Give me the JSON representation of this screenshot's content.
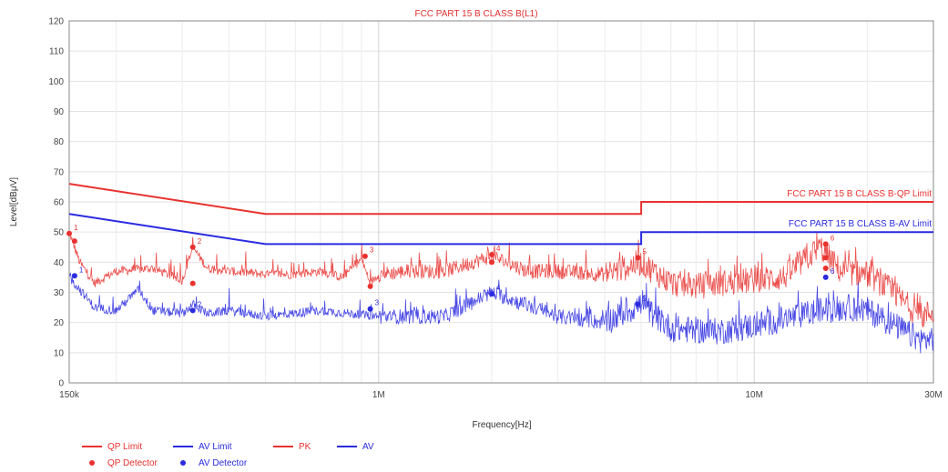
{
  "chart_data": {
    "type": "line",
    "title": "FCC PART 15 B CLASS B(L1)",
    "xlabel": "Frequency[Hz]",
    "ylabel": "Level[dBμV]",
    "x_scale": "log",
    "xlim": [
      150000,
      30000000
    ],
    "ylim": [
      0,
      120
    ],
    "y_ticks": [
      0,
      10,
      20,
      30,
      40,
      50,
      60,
      70,
      80,
      90,
      100,
      110,
      120
    ],
    "x_ticks": [
      {
        "value": 150000,
        "label": "150k"
      },
      {
        "value": 1000000,
        "label": "1M"
      },
      {
        "value": 10000000,
        "label": "10M"
      },
      {
        "value": 30000000,
        "label": "30M"
      }
    ],
    "grid": true,
    "colors": {
      "red": "#e8322f",
      "blue": "#2a2ae0"
    },
    "limits": [
      {
        "name": "QP Limit",
        "label": "FCC PART 15 B CLASS B-QP Limit",
        "color": "#e8322f",
        "points": [
          [
            150000,
            66
          ],
          [
            500000,
            56
          ],
          [
            5000000,
            56
          ],
          [
            5000000,
            60
          ],
          [
            30000000,
            60
          ]
        ]
      },
      {
        "name": "AV Limit",
        "label": "FCC PART 15 B CLASS B-AV Limit",
        "color": "#2a2ae0",
        "points": [
          [
            150000,
            56
          ],
          [
            500000,
            46
          ],
          [
            5000000,
            46
          ],
          [
            5000000,
            50
          ],
          [
            30000000,
            50
          ]
        ]
      }
    ],
    "series": [
      {
        "name": "PK",
        "color": "#e8322f",
        "points": [
          [
            150000,
            50
          ],
          [
            160000,
            40
          ],
          [
            175000,
            33
          ],
          [
            200000,
            37
          ],
          [
            250000,
            38
          ],
          [
            300000,
            34
          ],
          [
            320000,
            45
          ],
          [
            350000,
            38
          ],
          [
            400000,
            37
          ],
          [
            500000,
            36
          ],
          [
            600000,
            36
          ],
          [
            700000,
            37
          ],
          [
            800000,
            35
          ],
          [
            900000,
            41
          ],
          [
            950000,
            33
          ],
          [
            1000000,
            36
          ],
          [
            1200000,
            37
          ],
          [
            1500000,
            37
          ],
          [
            2000000,
            42
          ],
          [
            2500000,
            37
          ],
          [
            3000000,
            37
          ],
          [
            4000000,
            36
          ],
          [
            5000000,
            40
          ],
          [
            6000000,
            33
          ],
          [
            7000000,
            32
          ],
          [
            8000000,
            33
          ],
          [
            10000000,
            34
          ],
          [
            12000000,
            35
          ],
          [
            15000000,
            45
          ],
          [
            17000000,
            37
          ],
          [
            20000000,
            36
          ],
          [
            23000000,
            31
          ],
          [
            26000000,
            25
          ],
          [
            28000000,
            22
          ],
          [
            30000000,
            24
          ]
        ]
      },
      {
        "name": "AV",
        "color": "#2a2ae0",
        "points": [
          [
            150000,
            35
          ],
          [
            160000,
            31
          ],
          [
            175000,
            25
          ],
          [
            200000,
            24
          ],
          [
            230000,
            31
          ],
          [
            250000,
            24
          ],
          [
            300000,
            23
          ],
          [
            320000,
            26
          ],
          [
            350000,
            23
          ],
          [
            400000,
            24
          ],
          [
            500000,
            22
          ],
          [
            700000,
            24
          ],
          [
            1000000,
            22
          ],
          [
            1500000,
            22
          ],
          [
            2000000,
            30
          ],
          [
            3000000,
            22
          ],
          [
            4000000,
            20
          ],
          [
            5000000,
            26
          ],
          [
            6000000,
            18
          ],
          [
            8000000,
            17
          ],
          [
            10000000,
            19
          ],
          [
            12000000,
            21
          ],
          [
            15000000,
            24
          ],
          [
            18000000,
            25
          ],
          [
            20000000,
            24
          ],
          [
            23000000,
            20
          ],
          [
            26000000,
            16
          ],
          [
            28000000,
            14
          ],
          [
            30000000,
            15
          ]
        ]
      }
    ],
    "detectors": [
      {
        "name": "QP Detector",
        "color": "#e8322f",
        "points": [
          {
            "x": 150000,
            "y": 49.5,
            "label": "1"
          },
          {
            "x": 155000,
            "y": 47,
            "label": ""
          },
          {
            "x": 320000,
            "y": 45,
            "label": "2"
          },
          {
            "x": 320000,
            "y": 33,
            "label": ""
          },
          {
            "x": 920000,
            "y": 42,
            "label": "3"
          },
          {
            "x": 950000,
            "y": 32,
            "label": ""
          },
          {
            "x": 2000000,
            "y": 42.5,
            "label": "4"
          },
          {
            "x": 2000000,
            "y": 40,
            "label": ""
          },
          {
            "x": 4900000,
            "y": 41.5,
            "label": "5"
          },
          {
            "x": 15500000,
            "y": 46,
            "label": "6"
          },
          {
            "x": 15500000,
            "y": 41.5,
            "label": ""
          },
          {
            "x": 15500000,
            "y": 38,
            "label": ""
          }
        ]
      },
      {
        "name": "AV Detector",
        "color": "#2a2ae0",
        "points": [
          {
            "x": 155000,
            "y": 35.5,
            "label": "1"
          },
          {
            "x": 320000,
            "y": 24,
            "label": "2"
          },
          {
            "x": 950000,
            "y": 24.5,
            "label": "3"
          },
          {
            "x": 2000000,
            "y": 29.5,
            "label": "4"
          },
          {
            "x": 4900000,
            "y": 26,
            "label": "5"
          },
          {
            "x": 15500000,
            "y": 35,
            "label": "6"
          }
        ]
      }
    ],
    "legend": {
      "placement": "bottom-left",
      "entries": [
        {
          "label": "QP Limit",
          "kind": "line",
          "color": "#e8322f"
        },
        {
          "label": "AV Limit",
          "kind": "line",
          "color": "#2a2ae0"
        },
        {
          "label": "PK",
          "kind": "line",
          "color": "#e8322f"
        },
        {
          "label": "AV",
          "kind": "line",
          "color": "#2a2ae0"
        },
        {
          "label": "QP Detector",
          "kind": "dot",
          "color": "#e8322f"
        },
        {
          "label": "AV Detector",
          "kind": "dot",
          "color": "#2a2ae0"
        }
      ]
    }
  }
}
